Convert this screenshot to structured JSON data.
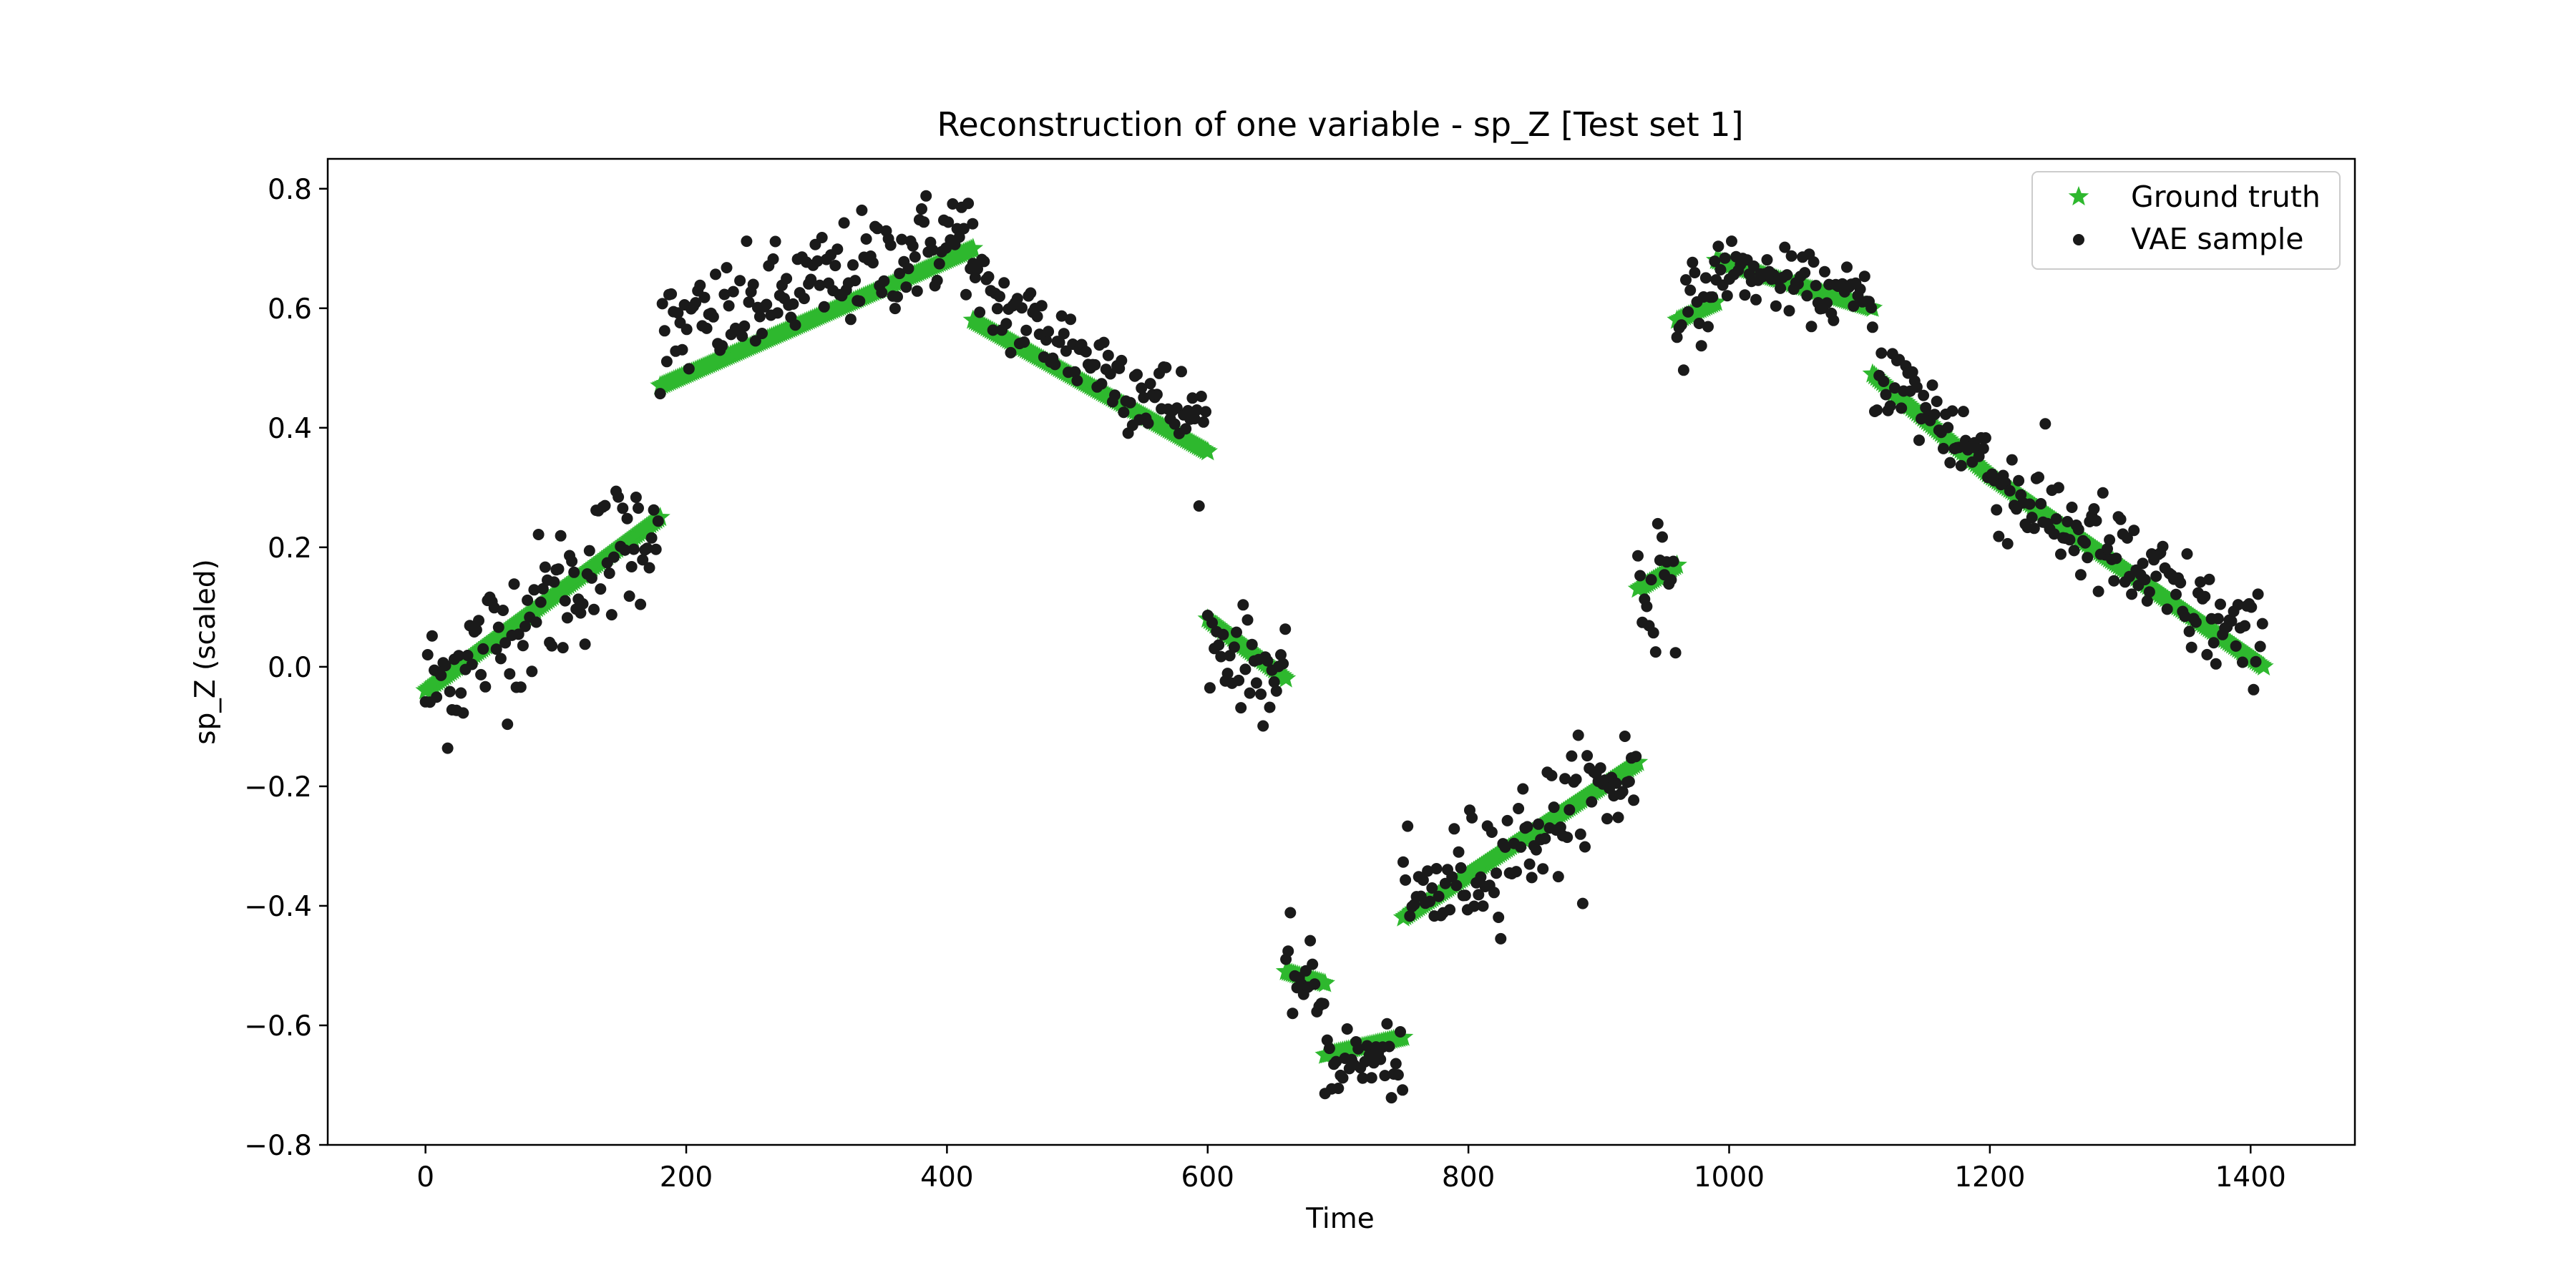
{
  "chart_data": {
    "type": "scatter",
    "title": "Reconstruction of one variable - sp_Z [Test set 1]",
    "xlabel": "Time",
    "ylabel": "sp_Z (scaled)",
    "xlim": [
      -75,
      1480
    ],
    "ylim": [
      -0.8,
      0.85
    ],
    "x_ticks": [
      0,
      200,
      400,
      600,
      800,
      1000,
      1200,
      1400
    ],
    "y_ticks": [
      -0.8,
      -0.6,
      -0.4,
      -0.2,
      0.0,
      0.2,
      0.4,
      0.6,
      0.8
    ],
    "legend_position": "top-right",
    "grid": false,
    "colors": {
      "ground_truth": "#2eb82e",
      "vae_sample": "#1a1a1a"
    },
    "series": [
      {
        "name": "Ground truth",
        "marker": "star",
        "segments": [
          {
            "x_start": 0,
            "x_end": 180,
            "y_start": -0.04,
            "y_end": 0.25
          },
          {
            "x_start": 180,
            "x_end": 420,
            "y_start": 0.47,
            "y_end": 0.7
          },
          {
            "x_start": 420,
            "x_end": 600,
            "y_start": 0.58,
            "y_end": 0.36
          },
          {
            "x_start": 600,
            "x_end": 660,
            "y_start": 0.08,
            "y_end": -0.02
          },
          {
            "x_start": 660,
            "x_end": 690,
            "y_start": -0.51,
            "y_end": -0.53
          },
          {
            "x_start": 690,
            "x_end": 750,
            "y_start": -0.65,
            "y_end": -0.62
          },
          {
            "x_start": 750,
            "x_end": 930,
            "y_start": -0.42,
            "y_end": -0.16
          },
          {
            "x_start": 930,
            "x_end": 960,
            "y_start": 0.13,
            "y_end": 0.17
          },
          {
            "x_start": 960,
            "x_end": 990,
            "y_start": 0.58,
            "y_end": 0.61
          },
          {
            "x_start": 990,
            "x_end": 1110,
            "y_start": 0.68,
            "y_end": 0.6
          },
          {
            "x_start": 1110,
            "x_end": 1200,
            "y_start": 0.49,
            "y_end": 0.32
          },
          {
            "x_start": 1200,
            "x_end": 1410,
            "y_start": 0.32,
            "y_end": 0.0
          }
        ]
      },
      {
        "name": "VAE sample",
        "marker": "dot",
        "segments": [
          {
            "x_start": 0,
            "x_end": 180,
            "y_start": -0.04,
            "y_end": 0.25,
            "spread": 0.06
          },
          {
            "x_start": 180,
            "x_end": 420,
            "y_start": 0.55,
            "y_end": 0.73,
            "spread": 0.045
          },
          {
            "x_start": 420,
            "x_end": 600,
            "y_start": 0.63,
            "y_end": 0.4,
            "spread": 0.04
          },
          {
            "x_start": 600,
            "x_end": 660,
            "y_start": 0.05,
            "y_end": -0.03,
            "spread": 0.04
          },
          {
            "x_start": 660,
            "x_end": 690,
            "y_start": -0.5,
            "y_end": -0.56,
            "spread": 0.035
          },
          {
            "x_start": 690,
            "x_end": 750,
            "y_start": -0.66,
            "y_end": -0.66,
            "spread": 0.03
          },
          {
            "x_start": 750,
            "x_end": 930,
            "y_start": -0.41,
            "y_end": -0.17,
            "spread": 0.05
          },
          {
            "x_start": 930,
            "x_end": 960,
            "y_start": 0.12,
            "y_end": 0.18,
            "spread": 0.07
          },
          {
            "x_start": 960,
            "x_end": 990,
            "y_start": 0.58,
            "y_end": 0.63,
            "spread": 0.035
          },
          {
            "x_start": 990,
            "x_end": 1110,
            "y_start": 0.67,
            "y_end": 0.61,
            "spread": 0.025
          },
          {
            "x_start": 1110,
            "x_end": 1200,
            "y_start": 0.51,
            "y_end": 0.34,
            "spread": 0.04
          },
          {
            "x_start": 1200,
            "x_end": 1410,
            "y_start": 0.32,
            "y_end": 0.02,
            "spread": 0.045
          }
        ]
      }
    ]
  }
}
